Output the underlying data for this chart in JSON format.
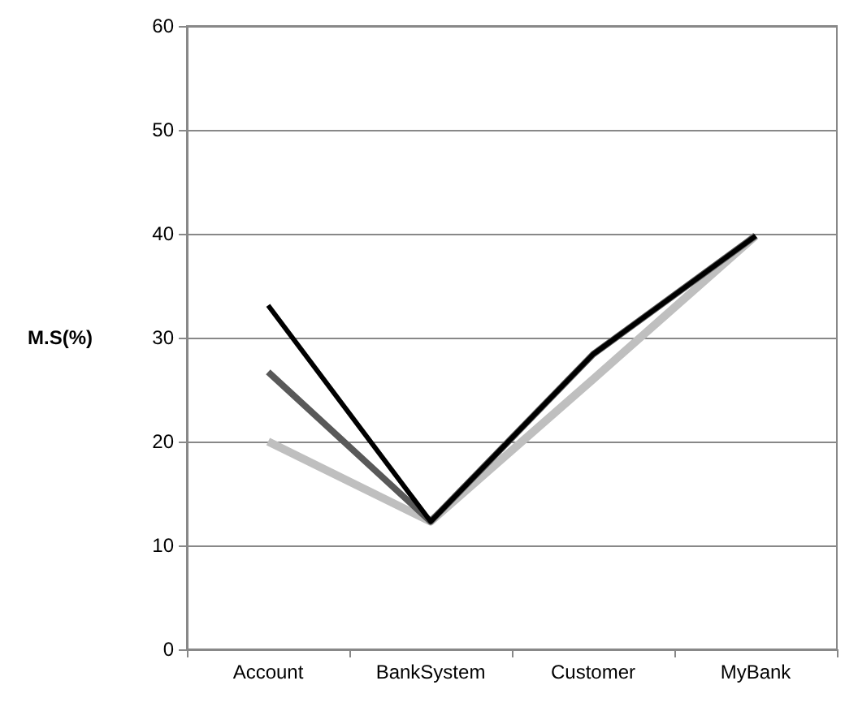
{
  "chart_data": {
    "type": "line",
    "ylabel": "M.S(%)",
    "categories": [
      "Account",
      "BankSystem",
      "Customer",
      "MyBank"
    ],
    "series": [
      {
        "color": "#bfbfbf",
        "values": [
          20,
          12.3,
          26,
          39.8
        ]
      },
      {
        "color": "#595959",
        "values": [
          26.7,
          12.3,
          28.4,
          39.8
        ]
      },
      {
        "color": "#000000",
        "values": [
          33.1,
          12.3,
          28.4,
          39.8
        ]
      }
    ],
    "ylim": [
      0,
      60
    ],
    "yticks": [
      0,
      10,
      20,
      30,
      40,
      50,
      60
    ],
    "grid": "y",
    "marker": "none",
    "line_style": "solid"
  }
}
